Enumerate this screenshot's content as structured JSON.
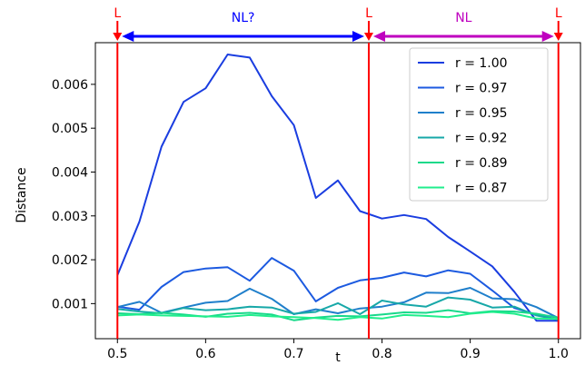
{
  "chart_data": {
    "type": "line",
    "title": "",
    "xlabel": "t",
    "ylabel": "Distance",
    "xlim": [
      0.475,
      1.025
    ],
    "ylim": [
      0.0002,
      0.00695
    ],
    "xticks": [
      0.5,
      0.6,
      0.7,
      0.8,
      0.9,
      1.0
    ],
    "xtick_labels": [
      "0.5",
      "0.6",
      "0.7",
      "0.8",
      "0.9",
      "1.0"
    ],
    "yticks": [
      0.001,
      0.002,
      0.003,
      0.004,
      0.005,
      0.006
    ],
    "ytick_labels": [
      "0.001",
      "0.002",
      "0.003",
      "0.004",
      "0.005",
      "0.006"
    ],
    "grid": false,
    "legend_position": "top-right",
    "x": [
      0.5,
      0.525,
      0.55,
      0.575,
      0.6,
      0.625,
      0.65,
      0.675,
      0.7,
      0.725,
      0.75,
      0.775,
      0.8,
      0.825,
      0.85,
      0.875,
      0.9,
      0.925,
      0.95,
      0.975,
      1.0
    ],
    "series": [
      {
        "name": "r = 1.00",
        "color": "#1a3de0",
        "values": [
          0.00165,
          0.00287,
          0.00458,
          0.0056,
          0.00591,
          0.00668,
          0.00661,
          0.00573,
          0.00507,
          0.00341,
          0.00381,
          0.00311,
          0.00294,
          0.00302,
          0.00293,
          0.00252,
          0.00219,
          0.00185,
          0.00127,
          0.00061,
          0.00061
        ]
      },
      {
        "name": "r = 0.97",
        "color": "#1c5ae0",
        "values": [
          0.00093,
          0.00086,
          0.00138,
          0.00172,
          0.0018,
          0.00183,
          0.00152,
          0.00204,
          0.00175,
          0.00105,
          0.00136,
          0.00153,
          0.00159,
          0.00171,
          0.00162,
          0.00176,
          0.00168,
          0.0013,
          0.0009,
          0.00075,
          0.00068
        ]
      },
      {
        "name": "r = 0.95",
        "color": "#1f7fcb",
        "values": [
          0.00092,
          0.00104,
          0.00079,
          0.00091,
          0.00102,
          0.00106,
          0.00134,
          0.00111,
          0.00076,
          0.00087,
          0.00078,
          0.00089,
          0.00093,
          0.00103,
          0.00125,
          0.00124,
          0.00136,
          0.00112,
          0.0011,
          0.00092,
          0.00067
        ]
      },
      {
        "name": "r = 0.92",
        "color": "#17a8a8",
        "values": [
          0.00088,
          0.00082,
          0.00078,
          0.0009,
          0.00085,
          0.00087,
          0.00093,
          0.00091,
          0.00077,
          0.00081,
          0.00101,
          0.00076,
          0.00107,
          0.00098,
          0.00093,
          0.00114,
          0.00109,
          0.00091,
          0.00093,
          0.00073,
          0.00063
        ]
      },
      {
        "name": "r = 0.89",
        "color": "#18d98a",
        "values": [
          0.00078,
          0.00076,
          0.00079,
          0.00075,
          0.0007,
          0.00077,
          0.00079,
          0.00075,
          0.00062,
          0.00068,
          0.00072,
          0.00071,
          0.00075,
          0.0008,
          0.00079,
          0.00085,
          0.00078,
          0.00083,
          0.00082,
          0.00077,
          0.00068
        ]
      },
      {
        "name": "r = 0.87",
        "color": "#20ee8c",
        "values": [
          0.00073,
          0.00075,
          0.00073,
          0.00072,
          0.00071,
          0.0007,
          0.00074,
          0.00071,
          0.00069,
          0.00067,
          0.00063,
          0.00069,
          0.00066,
          0.00074,
          0.00072,
          0.00069,
          0.00077,
          0.00081,
          0.00077,
          0.00066,
          0.00065
        ]
      }
    ],
    "vlines": {
      "x": [
        0.5,
        0.785,
        1.0
      ],
      "color": "#ff0000",
      "label": "L"
    },
    "annotations": [
      {
        "label": "NL?",
        "x_start": 0.5,
        "x_end": 0.785,
        "color": "#0000ff"
      },
      {
        "label": "NL",
        "x_start": 0.785,
        "x_end": 1.0,
        "color": "#bf00bf"
      }
    ]
  }
}
